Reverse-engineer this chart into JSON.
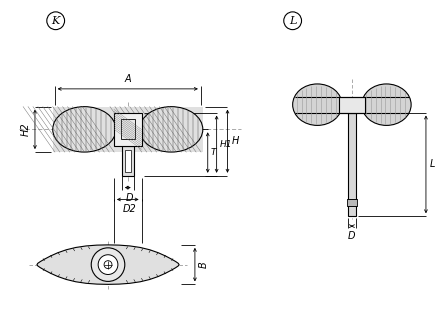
{
  "bg_color": "#ffffff",
  "line_color": "#000000",
  "fill_grip": "#d4d4d4",
  "fill_boss": "#e8e8e8",
  "fill_stem": "#e0e0e0",
  "fill_hatch_bg": "#e0e0e0",
  "label_K": "K",
  "label_L": "L",
  "label_A": "A",
  "label_H": "H",
  "label_H1": "H1",
  "label_H2": "H2",
  "label_T": "T",
  "label_D": "D",
  "label_D2": "D2",
  "label_B": "B",
  "label_L_dim": "L",
  "label_D_right": "D"
}
